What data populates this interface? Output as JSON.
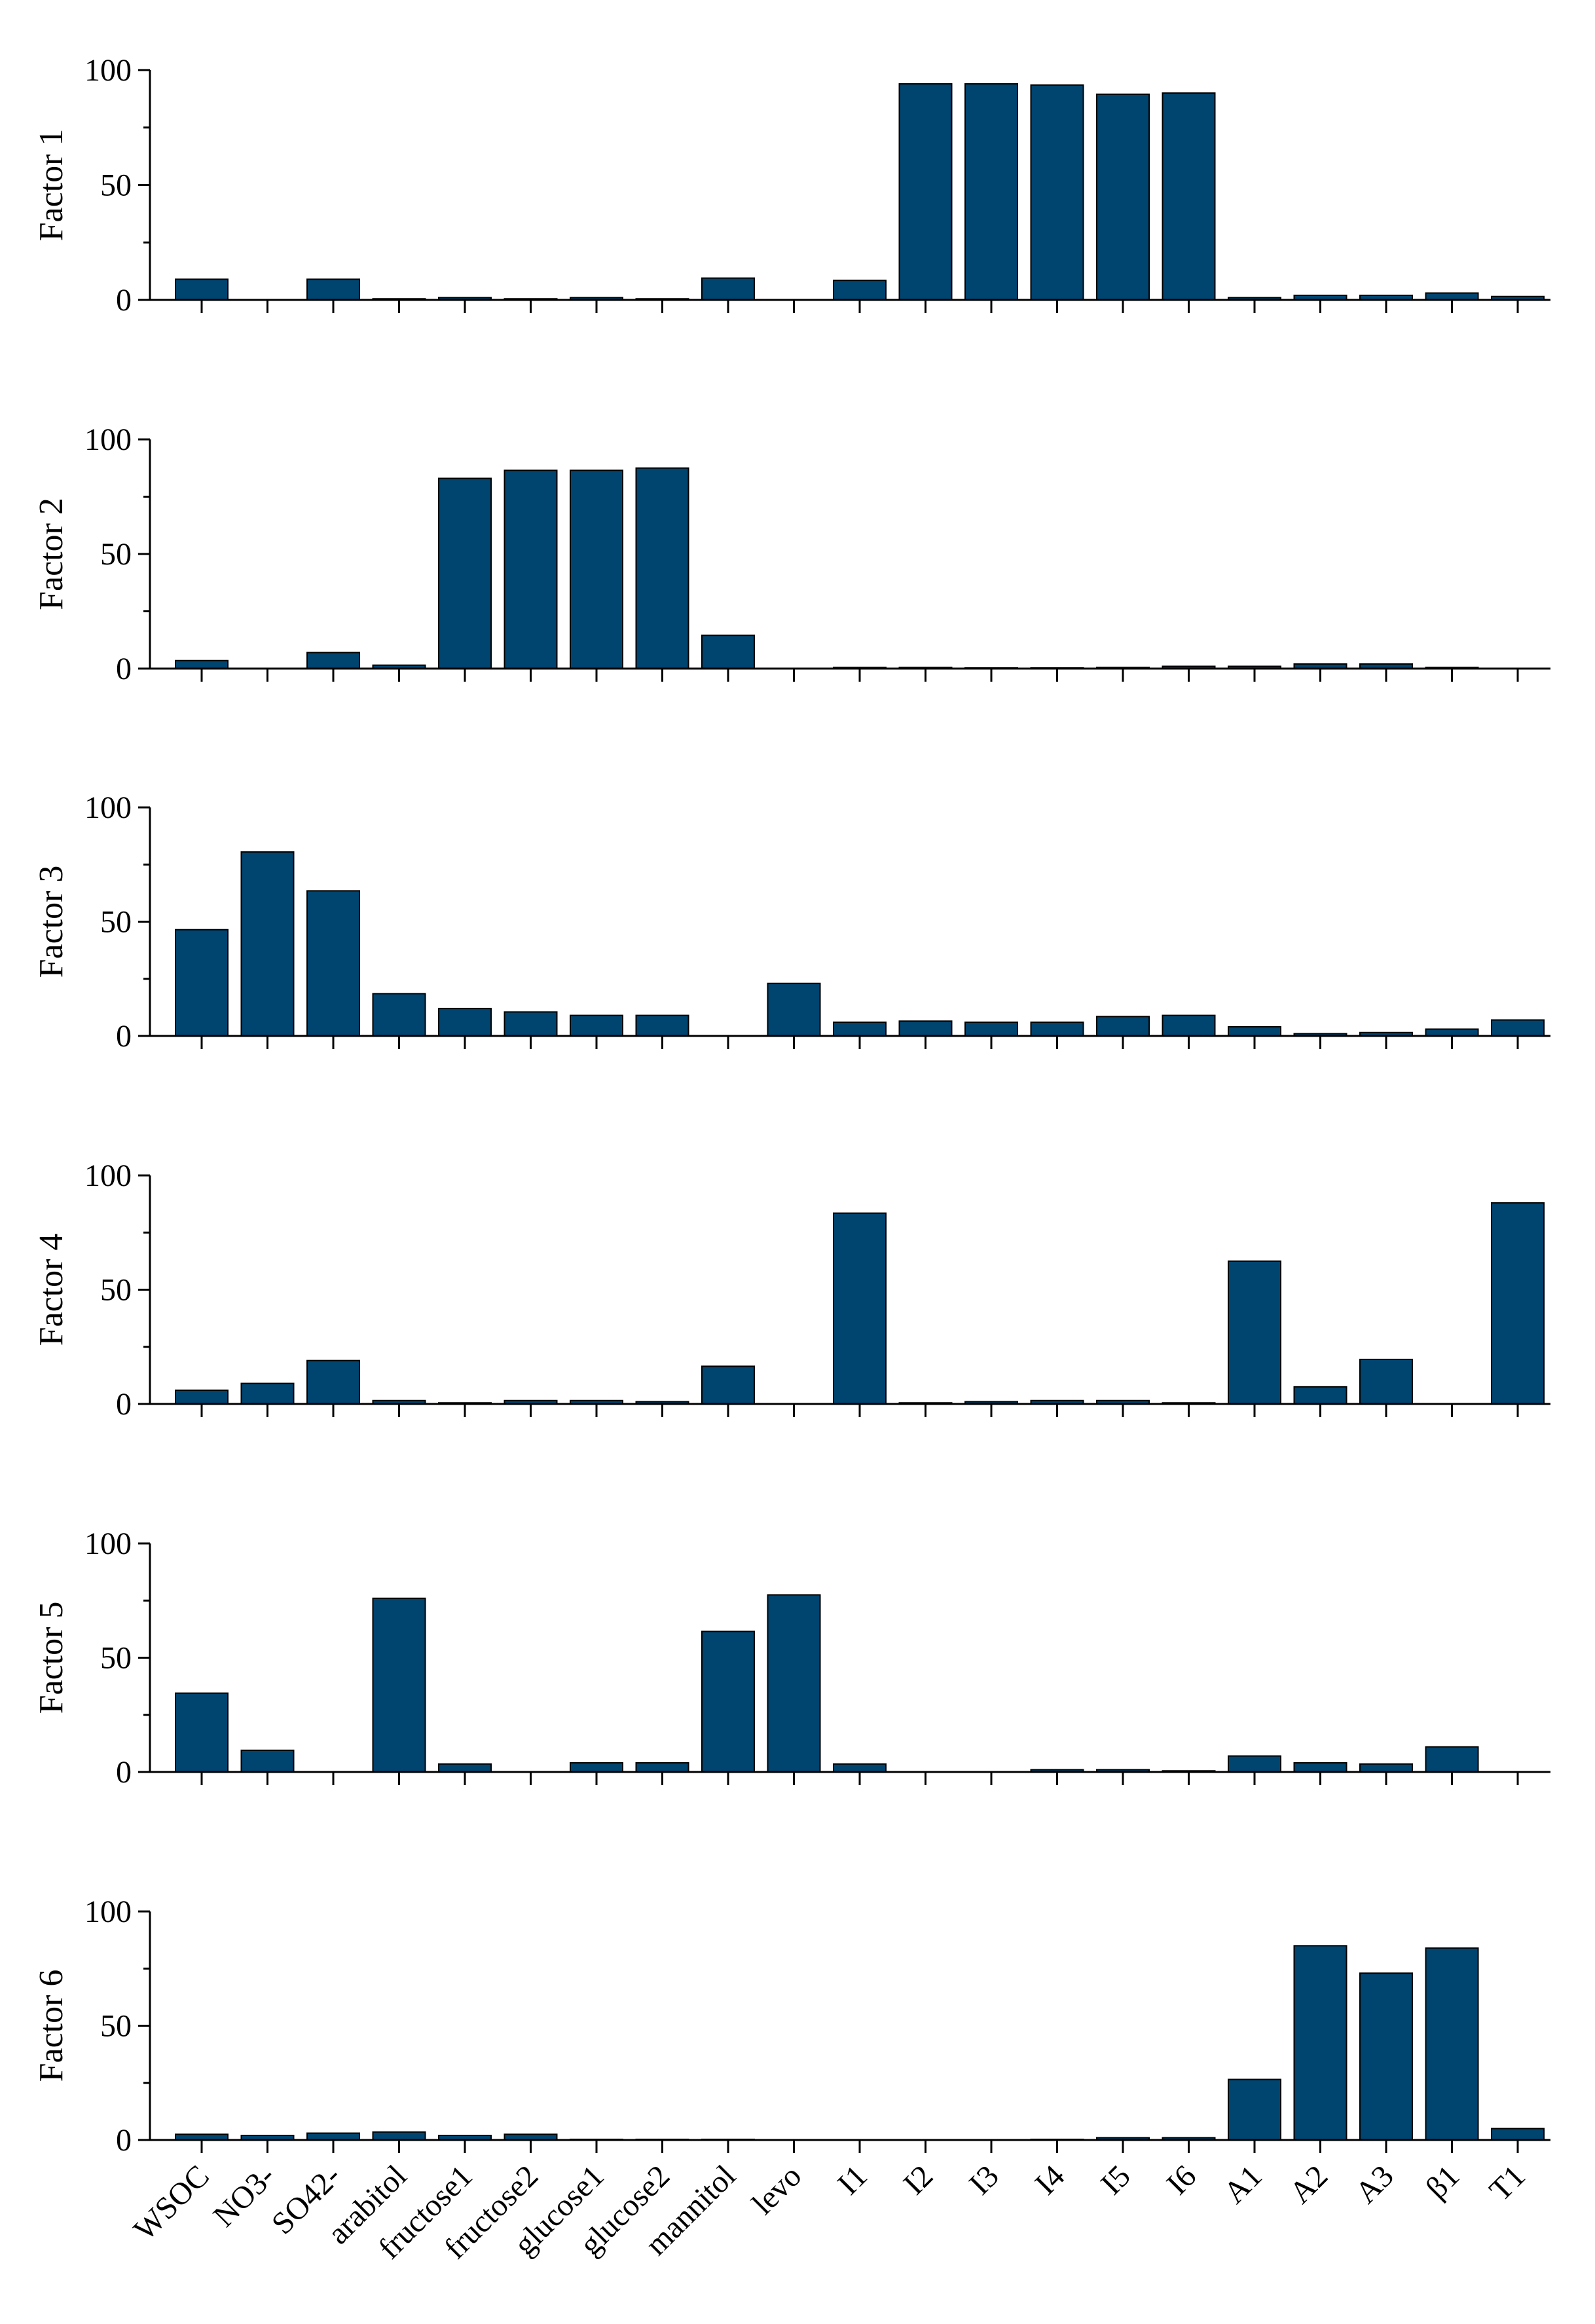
{
  "colors": {
    "bar": "#004470",
    "bar_stroke": "#000000",
    "axis": "#000000"
  },
  "chart_data": {
    "type": "bar",
    "categories": [
      "WSOC",
      "NO3-",
      "SO42-",
      "arabitol",
      "fructose1",
      "fructose2",
      "glucose1",
      "glucose2",
      "mannitol",
      "levo",
      "I1",
      "I2",
      "I3",
      "I4",
      "I5",
      "I6",
      "A1",
      "A2",
      "A3",
      "β1",
      "T1"
    ],
    "ylim": [
      0,
      100
    ],
    "yticks": [
      "0",
      "50",
      "100"
    ],
    "series": [
      {
        "name": "Factor 1",
        "ylabel": "Factor 1",
        "values": [
          9,
          0,
          9,
          0.5,
          1,
          0.5,
          1,
          0.5,
          9.5,
          0,
          8.5,
          94,
          94,
          93.5,
          89.5,
          90,
          1,
          2,
          2,
          3,
          1.5
        ]
      },
      {
        "name": "Factor 2",
        "ylabel": "Factor 2",
        "values": [
          3.5,
          0,
          7,
          1.5,
          83,
          86.5,
          86.5,
          87.5,
          14.5,
          0,
          0.5,
          0.5,
          0.3,
          0.3,
          0.5,
          1,
          1,
          2,
          2,
          0.5,
          0
        ]
      },
      {
        "name": "Factor 3",
        "ylabel": "Factor 3",
        "values": [
          46.5,
          80.5,
          63.5,
          18.5,
          12,
          10.5,
          9,
          9,
          0,
          23,
          6,
          6.5,
          6,
          6,
          8.5,
          9,
          4,
          1,
          1.5,
          3,
          7
        ]
      },
      {
        "name": "Factor 4",
        "ylabel": "Factor 4",
        "values": [
          6,
          9,
          19,
          1.5,
          0.5,
          1.5,
          1.5,
          1,
          16.5,
          0,
          83.5,
          0.5,
          1,
          1.5,
          1.5,
          0.5,
          62.5,
          7.5,
          19.5,
          0,
          88
        ]
      },
      {
        "name": "Factor 5",
        "ylabel": "Factor 5",
        "values": [
          34.5,
          9.5,
          0,
          76,
          3.5,
          0,
          4,
          4,
          61.5,
          77.5,
          3.5,
          0,
          0,
          1,
          1,
          0.5,
          7,
          4,
          3.5,
          11,
          0
        ]
      },
      {
        "name": "Factor 6",
        "ylabel": "Factor 6",
        "values": [
          2.5,
          2,
          3,
          3.5,
          2,
          2.5,
          0.3,
          0.3,
          0.3,
          0,
          0,
          0,
          0,
          0.3,
          1,
          1,
          26.5,
          85,
          73,
          84,
          5
        ]
      }
    ]
  }
}
